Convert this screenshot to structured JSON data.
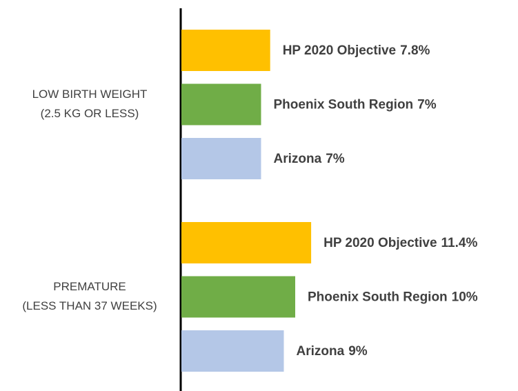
{
  "chart_data": {
    "type": "bar",
    "orientation": "horizontal",
    "categories": [
      [
        "LOW BIRTH WEIGHT",
        "(2.5 KG OR LESS)"
      ],
      [
        "PREMATURE",
        "(LESS THAN 37 WEEKS)"
      ]
    ],
    "series": [
      {
        "name": "HP 2020 Objective",
        "color": "#FFC000",
        "values": [
          7.8,
          11.4
        ],
        "value_labels": [
          "7.8%",
          "11.4%"
        ]
      },
      {
        "name": "Phoenix South Region",
        "color": "#70AD47",
        "values": [
          7,
          10
        ],
        "value_labels": [
          "7%",
          "10%"
        ]
      },
      {
        "name": "Arizona",
        "color": "#B4C7E7",
        "values": [
          7,
          9
        ],
        "value_labels": [
          "7%",
          "9%"
        ]
      }
    ]
  }
}
